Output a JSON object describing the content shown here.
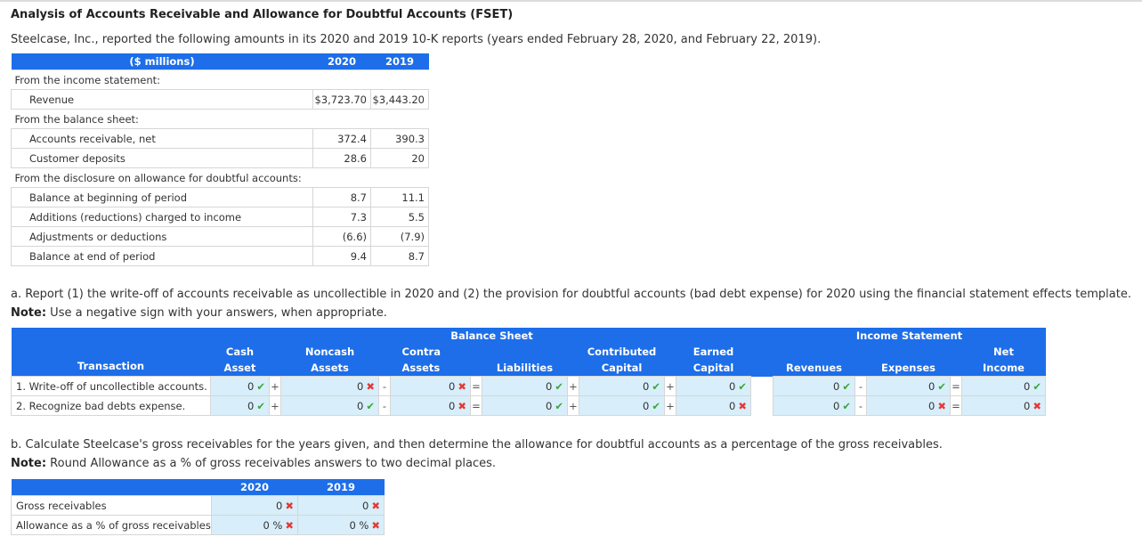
{
  "title": "Analysis of Accounts Receivable and Allowance for Doubtful Accounts (FSET)",
  "intro": "Steelcase, Inc., reported the following amounts in its 2020 and 2019 10-K reports (years ended February 28, 2020, and February 22, 2019).",
  "data_table": {
    "header_label": "($ millions)",
    "col1": "2020",
    "col2": "2019",
    "sections": {
      "income": "From the income statement:",
      "balance": "From the balance sheet:",
      "disclosure": "From the disclosure on allowance for doubtful accounts:"
    },
    "rows": {
      "revenue": {
        "label": "Revenue",
        "v2020": "$3,723.70",
        "v2019": "$3,443.20"
      },
      "ar": {
        "label": "Accounts receivable, net",
        "v2020": "372.4",
        "v2019": "390.3"
      },
      "deposits": {
        "label": "Customer deposits",
        "v2020": "28.6",
        "v2019": "20"
      },
      "beg": {
        "label": "Balance at beginning of period",
        "v2020": "8.7",
        "v2019": "11.1"
      },
      "add": {
        "label": "Additions (reductions) charged to income",
        "v2020": "7.3",
        "v2019": "5.5"
      },
      "adj": {
        "label": "Adjustments or deductions",
        "v2020": "(6.6)",
        "v2019": "(7.9)"
      },
      "end": {
        "label": "Balance at end of period",
        "v2020": "9.4",
        "v2019": "8.7"
      }
    }
  },
  "part_a": {
    "text": "a. Report (1) the write-off of accounts receivable as uncollectible in 2020 and (2) the provision for doubtful accounts (bad debt expense) for 2020 using the financial statement effects template.",
    "note_label": "Note:",
    "note": " Use a negative sign with your answers, when appropriate."
  },
  "fset": {
    "group_balance": "Balance Sheet",
    "group_income": "Income Statement",
    "headers": {
      "transaction": "Transaction",
      "cash1": "Cash",
      "cash2": "Asset",
      "noncash1": "Noncash",
      "noncash2": "Assets",
      "contra0": "Contra",
      "contra1": "Assets",
      "liab": "Liabilities",
      "cc1": "Contributed",
      "cc2": "Capital",
      "ec1": "Earned",
      "ec2": "Capital",
      "rev": "Revenues",
      "exp": "Expenses",
      "ni1": "Net",
      "ni2": "Income"
    },
    "ops": {
      "plus": "+",
      "minus": "-",
      "eq": "="
    },
    "rows": [
      {
        "label": "1. Write-off of uncollectible accounts.",
        "cash": "0",
        "noncash": "0",
        "contra": "0",
        "liab": "0",
        "cc": "0",
        "ec": "0",
        "rev": "0",
        "exp": "0",
        "ni": "0"
      },
      {
        "label": "2. Recognize bad debts expense.",
        "cash": "0",
        "noncash": "0",
        "contra": "0",
        "liab": "0",
        "cc": "0",
        "ec": "0",
        "rev": "0",
        "exp": "0",
        "ni": "0"
      }
    ],
    "marks": {
      "ok": "✔",
      "bad": "✖"
    }
  },
  "part_b": {
    "text": "b. Calculate Steelcase's gross receivables for the years given, and then determine the allowance for doubtful accounts as a percentage of the gross receivables.",
    "note_label": "Note:",
    "note": " Round Allowance as a % of gross receivables answers to two decimal places.",
    "col1": "2020",
    "col2": "2019",
    "rows": {
      "gross": {
        "label": "Gross receivables",
        "v2020": "0",
        "v2019": "0"
      },
      "pct": {
        "label": "Allowance as a % of gross receivables",
        "v2020": "0",
        "v2019": "0",
        "unit": "%"
      }
    }
  }
}
